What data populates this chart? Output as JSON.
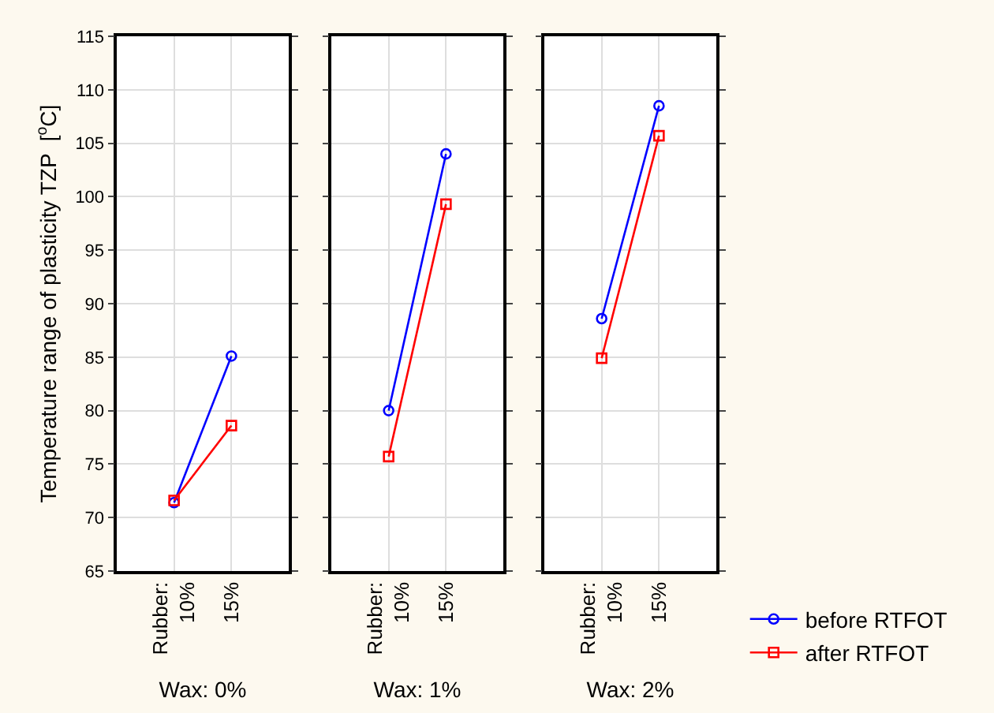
{
  "chart_data": [
    {
      "type": "line",
      "categories": [
        "Rubber:\n10%",
        "15%"
      ],
      "xlabel": "Wax: 0%",
      "ylabel": "Temperature range of plasticity TZP  [$^{o}$C]",
      "ylim": [
        65,
        115
      ],
      "yticks": [
        65,
        70,
        75,
        80,
        85,
        90,
        95,
        100,
        105,
        110,
        115
      ],
      "grid": true,
      "legend": false,
      "series": [
        {
          "color": "#0000ff",
          "marker": "circle",
          "values": [
            71.4,
            85.1
          ]
        },
        {
          "color": "#ff0000",
          "marker": "square",
          "values": [
            71.6,
            78.6
          ]
        }
      ]
    },
    {
      "type": "line",
      "categories": [
        "Rubber:\n10%",
        "15%"
      ],
      "xlabel": "Wax: 1%",
      "ylim": [
        65,
        115
      ],
      "yticks": [
        65,
        70,
        75,
        80,
        85,
        90,
        95,
        100,
        105,
        110,
        115
      ],
      "grid": true,
      "legend": false,
      "tick_labels": "x",
      "series": [
        {
          "color": "#0000ff",
          "marker": "circle",
          "values": [
            80.0,
            104.0
          ]
        },
        {
          "color": "#ff0000",
          "marker": "square",
          "values": [
            75.7,
            99.3
          ]
        }
      ]
    },
    {
      "type": "line",
      "categories": [
        "Rubber:\n10%",
        "15%"
      ],
      "xlabel": "Wax: 2%",
      "ylim": [
        65,
        115
      ],
      "yticks": [
        65,
        70,
        75,
        80,
        85,
        90,
        95,
        100,
        105,
        110,
        115
      ],
      "grid": true,
      "legend": "bottom right",
      "tick_labels": "x",
      "series": [
        {
          "name": "before RTFOT",
          "color": "#0000ff",
          "marker": "circle",
          "values": [
            88.6,
            108.5
          ]
        },
        {
          "name": "after RTFOT",
          "color": "#ff0000",
          "marker": "square",
          "values": [
            84.9,
            105.7
          ]
        }
      ]
    }
  ]
}
